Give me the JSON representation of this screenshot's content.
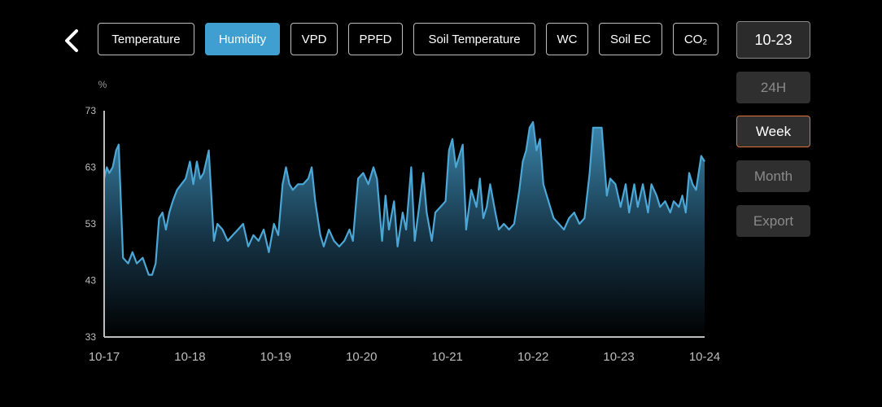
{
  "tabs": [
    {
      "label": "Temperature",
      "active": false
    },
    {
      "label": "Humidity",
      "active": true
    },
    {
      "label": "VPD",
      "active": false
    },
    {
      "label": "PPFD",
      "active": false
    },
    {
      "label": "Soil Temperature",
      "active": false
    },
    {
      "label": "WC",
      "active": false
    },
    {
      "label": "Soil EC",
      "active": false
    },
    {
      "label": "CO₂",
      "active": false
    }
  ],
  "date_button": "10-23",
  "range_options": [
    {
      "label": "24H",
      "selected": false
    },
    {
      "label": "Week",
      "selected": true
    },
    {
      "label": "Month",
      "selected": false
    },
    {
      "label": "Export",
      "selected": false
    }
  ],
  "colors": {
    "line": "#4aa7d6",
    "active_tab": "#3e9fd0",
    "selected_outline": "#e0733a"
  },
  "chart_data": {
    "type": "area",
    "ylabel": "%",
    "ylim": [
      33,
      73
    ],
    "yticks": [
      33,
      43,
      53,
      63,
      73
    ],
    "xlim": [
      0,
      7
    ],
    "xticks": [
      "10-17",
      "10-18",
      "10-19",
      "10-20",
      "10-21",
      "10-22",
      "10-23",
      "10-24"
    ],
    "series": [
      {
        "values": [
          [
            0.0,
            61
          ],
          [
            0.03,
            63
          ],
          [
            0.06,
            62
          ],
          [
            0.1,
            63
          ],
          [
            0.14,
            66
          ],
          [
            0.17,
            67
          ],
          [
            0.22,
            47
          ],
          [
            0.28,
            46
          ],
          [
            0.33,
            48
          ],
          [
            0.38,
            46
          ],
          [
            0.45,
            47
          ],
          [
            0.52,
            44
          ],
          [
            0.56,
            44
          ],
          [
            0.6,
            46
          ],
          [
            0.64,
            54
          ],
          [
            0.68,
            55
          ],
          [
            0.72,
            52
          ],
          [
            0.76,
            55
          ],
          [
            0.8,
            57
          ],
          [
            0.85,
            59
          ],
          [
            0.9,
            60
          ],
          [
            0.95,
            61
          ],
          [
            1.0,
            64
          ],
          [
            1.04,
            60
          ],
          [
            1.08,
            64
          ],
          [
            1.12,
            61
          ],
          [
            1.16,
            62
          ],
          [
            1.22,
            66
          ],
          [
            1.28,
            50
          ],
          [
            1.32,
            53
          ],
          [
            1.38,
            52
          ],
          [
            1.44,
            50
          ],
          [
            1.5,
            51
          ],
          [
            1.56,
            52
          ],
          [
            1.62,
            53
          ],
          [
            1.68,
            49
          ],
          [
            1.74,
            51
          ],
          [
            1.8,
            50
          ],
          [
            1.86,
            52
          ],
          [
            1.92,
            48
          ],
          [
            1.98,
            53
          ],
          [
            2.03,
            51
          ],
          [
            2.08,
            60
          ],
          [
            2.12,
            63
          ],
          [
            2.16,
            60
          ],
          [
            2.2,
            59
          ],
          [
            2.26,
            60
          ],
          [
            2.32,
            60
          ],
          [
            2.38,
            61
          ],
          [
            2.42,
            63
          ],
          [
            2.46,
            57
          ],
          [
            2.52,
            51
          ],
          [
            2.56,
            49
          ],
          [
            2.62,
            52
          ],
          [
            2.68,
            50
          ],
          [
            2.74,
            49
          ],
          [
            2.8,
            50
          ],
          [
            2.86,
            52
          ],
          [
            2.9,
            50
          ],
          [
            2.96,
            61
          ],
          [
            3.02,
            62
          ],
          [
            3.08,
            60
          ],
          [
            3.14,
            63
          ],
          [
            3.18,
            61
          ],
          [
            3.24,
            50
          ],
          [
            3.28,
            58
          ],
          [
            3.32,
            52
          ],
          [
            3.38,
            57
          ],
          [
            3.42,
            49
          ],
          [
            3.48,
            55
          ],
          [
            3.52,
            52
          ],
          [
            3.58,
            63
          ],
          [
            3.62,
            50
          ],
          [
            3.68,
            57
          ],
          [
            3.72,
            62
          ],
          [
            3.76,
            55
          ],
          [
            3.82,
            50
          ],
          [
            3.86,
            55
          ],
          [
            3.92,
            56
          ],
          [
            3.98,
            57
          ],
          [
            4.02,
            66
          ],
          [
            4.06,
            68
          ],
          [
            4.1,
            63
          ],
          [
            4.14,
            65
          ],
          [
            4.18,
            67
          ],
          [
            4.22,
            52
          ],
          [
            4.28,
            59
          ],
          [
            4.34,
            56
          ],
          [
            4.38,
            61
          ],
          [
            4.42,
            54
          ],
          [
            4.46,
            56
          ],
          [
            4.5,
            60
          ],
          [
            4.56,
            55
          ],
          [
            4.6,
            52
          ],
          [
            4.66,
            53
          ],
          [
            4.72,
            52
          ],
          [
            4.78,
            53
          ],
          [
            4.84,
            59
          ],
          [
            4.88,
            64
          ],
          [
            4.92,
            66
          ],
          [
            4.96,
            70
          ],
          [
            5.0,
            71
          ],
          [
            5.04,
            66
          ],
          [
            5.08,
            68
          ],
          [
            5.12,
            60
          ],
          [
            5.16,
            58
          ],
          [
            5.2,
            56
          ],
          [
            5.24,
            54
          ],
          [
            5.3,
            53
          ],
          [
            5.36,
            52
          ],
          [
            5.42,
            54
          ],
          [
            5.48,
            55
          ],
          [
            5.54,
            53
          ],
          [
            5.6,
            54
          ],
          [
            5.66,
            62
          ],
          [
            5.7,
            70
          ],
          [
            5.74,
            70
          ],
          [
            5.8,
            70
          ],
          [
            5.86,
            58
          ],
          [
            5.9,
            61
          ],
          [
            5.96,
            60
          ],
          [
            6.02,
            56
          ],
          [
            6.08,
            60
          ],
          [
            6.12,
            55
          ],
          [
            6.18,
            60
          ],
          [
            6.22,
            56
          ],
          [
            6.28,
            60
          ],
          [
            6.34,
            55
          ],
          [
            6.38,
            60
          ],
          [
            6.44,
            58
          ],
          [
            6.48,
            56
          ],
          [
            6.54,
            57
          ],
          [
            6.6,
            55
          ],
          [
            6.64,
            57
          ],
          [
            6.7,
            56
          ],
          [
            6.74,
            58
          ],
          [
            6.78,
            55
          ],
          [
            6.82,
            62
          ],
          [
            6.86,
            60
          ],
          [
            6.9,
            59
          ],
          [
            6.96,
            65
          ],
          [
            7.0,
            64
          ]
        ]
      }
    ]
  }
}
